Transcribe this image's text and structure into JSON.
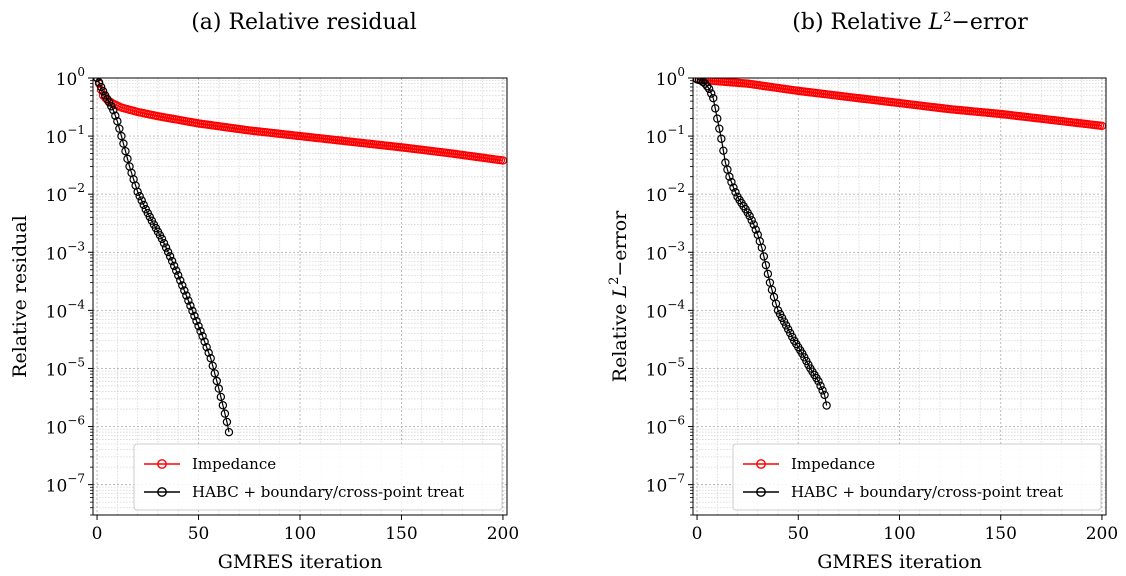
{
  "chart_data": [
    {
      "type": "line",
      "title": "(a) Relative residual",
      "xlabel": "GMRES iteration",
      "ylabel": "Relative residual",
      "xscale": "linear",
      "yscale": "log",
      "xlim": [
        -2,
        202
      ],
      "ylim": [
        3e-08,
        1.0
      ],
      "xticks": [
        0,
        50,
        100,
        150,
        200
      ],
      "yticks": [
        1,
        0.1,
        0.01,
        0.001,
        0.0001,
        1e-05,
        1e-06,
        1e-07
      ],
      "ytick_labels": [
        {
          "b": "10",
          "e": "0"
        },
        {
          "b": "10",
          "e": "−1"
        },
        {
          "b": "10",
          "e": "−2"
        },
        {
          "b": "10",
          "e": "−3"
        },
        {
          "b": "10",
          "e": "−4"
        },
        {
          "b": "10",
          "e": "−5"
        },
        {
          "b": "10",
          "e": "−6"
        },
        {
          "b": "10",
          "e": "−7"
        }
      ],
      "grid": true,
      "legend_position": "lower-right",
      "series": [
        {
          "name": "Impedance",
          "color": "#ff0000",
          "marker": "circle-open",
          "points": [
            [
              0,
              1.0
            ],
            [
              1,
              0.8
            ],
            [
              2,
              0.62
            ],
            [
              3,
              0.5
            ],
            [
              5,
              0.42
            ],
            [
              8,
              0.36
            ],
            [
              12,
              0.31
            ],
            [
              20,
              0.26
            ],
            [
              30,
              0.22
            ],
            [
              50,
              0.165
            ],
            [
              75,
              0.125
            ],
            [
              100,
              0.1
            ],
            [
              125,
              0.08
            ],
            [
              150,
              0.064
            ],
            [
              175,
              0.05
            ],
            [
              200,
              0.038
            ]
          ]
        },
        {
          "name": "HABC + boundary/cross-point treat",
          "color": "#000000",
          "marker": "circle-open",
          "points": [
            [
              0,
              1.0
            ],
            [
              2,
              0.7
            ],
            [
              4,
              0.5
            ],
            [
              6,
              0.38
            ],
            [
              8,
              0.28
            ],
            [
              10,
              0.18
            ],
            [
              12,
              0.1
            ],
            [
              14,
              0.055
            ],
            [
              16,
              0.03
            ],
            [
              18,
              0.018
            ],
            [
              20,
              0.011
            ],
            [
              24,
              0.0055
            ],
            [
              28,
              0.003
            ],
            [
              32,
              0.0017
            ],
            [
              36,
              0.00085
            ],
            [
              40,
              0.0004
            ],
            [
              44,
              0.00018
            ],
            [
              48,
              8e-05
            ],
            [
              52,
              3.6e-05
            ],
            [
              56,
              1.5e-05
            ],
            [
              60,
              4.5e-06
            ],
            [
              64,
              1.2e-06
            ],
            [
              65,
              8e-07
            ]
          ]
        }
      ]
    },
    {
      "type": "line",
      "title": {
        "pre": "(b) Relative ",
        "var": "L",
        "sup": "2",
        "post": "−error"
      },
      "xlabel": "GMRES iteration",
      "ylabel": {
        "pre": "Relative ",
        "var": "L",
        "sup": "2",
        "post": "−error"
      },
      "xscale": "linear",
      "yscale": "log",
      "xlim": [
        -2,
        202
      ],
      "ylim": [
        3e-08,
        1.0
      ],
      "xticks": [
        0,
        50,
        100,
        150,
        200
      ],
      "yticks": [
        1,
        0.1,
        0.01,
        0.001,
        0.0001,
        1e-05,
        1e-06,
        1e-07
      ],
      "ytick_labels": [
        {
          "b": "10",
          "e": "0"
        },
        {
          "b": "10",
          "e": "−1"
        },
        {
          "b": "10",
          "e": "−2"
        },
        {
          "b": "10",
          "e": "−3"
        },
        {
          "b": "10",
          "e": "−4"
        },
        {
          "b": "10",
          "e": "−5"
        },
        {
          "b": "10",
          "e": "−6"
        },
        {
          "b": "10",
          "e": "−7"
        }
      ],
      "grid": true,
      "legend_position": "lower-right",
      "series": [
        {
          "name": "Impedance",
          "color": "#ff0000",
          "marker": "circle-open",
          "points": [
            [
              0,
              0.95
            ],
            [
              10,
              0.88
            ],
            [
              25,
              0.8
            ],
            [
              50,
              0.6
            ],
            [
              75,
              0.47
            ],
            [
              100,
              0.37
            ],
            [
              125,
              0.29
            ],
            [
              150,
              0.24
            ],
            [
              175,
              0.19
            ],
            [
              200,
              0.15
            ]
          ]
        },
        {
          "name": "HABC + boundary/cross-point treat",
          "color": "#000000",
          "marker": "circle-open",
          "points": [
            [
              0,
              0.95
            ],
            [
              2,
              0.9
            ],
            [
              4,
              0.8
            ],
            [
              6,
              0.65
            ],
            [
              8,
              0.45
            ],
            [
              10,
              0.2
            ],
            [
              12,
              0.09
            ],
            [
              14,
              0.035
            ],
            [
              16,
              0.02
            ],
            [
              18,
              0.013
            ],
            [
              20,
              0.009
            ],
            [
              22,
              0.007
            ],
            [
              24,
              0.0055
            ],
            [
              26,
              0.0042
            ],
            [
              28,
              0.003
            ],
            [
              30,
              0.002
            ],
            [
              32,
              0.0012
            ],
            [
              34,
              0.0006
            ],
            [
              36,
              0.0003
            ],
            [
              38,
              0.00017
            ],
            [
              40,
              0.0001
            ],
            [
              44,
              5.5e-05
            ],
            [
              48,
              3e-05
            ],
            [
              52,
              1.8e-05
            ],
            [
              56,
              1e-05
            ],
            [
              60,
              6e-06
            ],
            [
              63,
              3.5e-06
            ],
            [
              64,
              2.3e-06
            ]
          ]
        }
      ]
    }
  ]
}
